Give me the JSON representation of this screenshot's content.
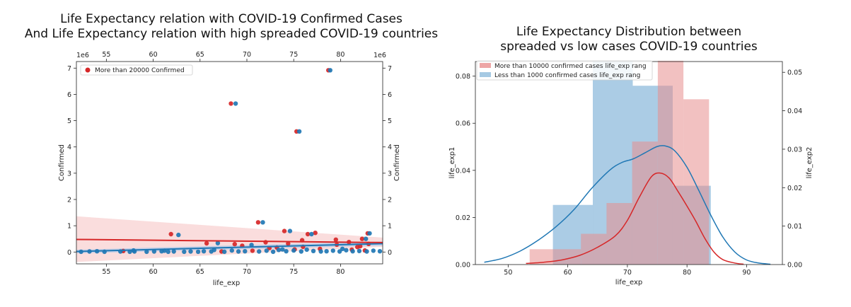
{
  "chart_data": [
    {
      "type": "scatter",
      "title_line1": "Life Expectancy relation with COVID-19 Confirmed Cases",
      "title_line2": "And Life Expectancy relation with high spreaded COVID-19 countries",
      "xlabel": "life_exp",
      "ylabel_left": "Confirmed",
      "ylabel_right": "Confirmed",
      "offset_left": "1e6",
      "offset_right": "1e6",
      "xlim": [
        51.8,
        84.5
      ],
      "ylim": [
        -0.45,
        7.25
      ],
      "x_ticks": [
        "55",
        "60",
        "65",
        "70",
        "75",
        "80"
      ],
      "x_tick_values": [
        55,
        60,
        65,
        70,
        75,
        80
      ],
      "top_x_ticks": [
        "55",
        "60",
        "65",
        "70",
        "75",
        "80"
      ],
      "top_x_tick_values": [
        55,
        60,
        65,
        70,
        75,
        80
      ],
      "y_ticks": [
        "0",
        "1",
        "2",
        "3",
        "4",
        "5",
        "6",
        "7"
      ],
      "y_tick_values": [
        0,
        1,
        2,
        3,
        4,
        5,
        6,
        7
      ],
      "legend": {
        "label": "More than 20000 Confirmed",
        "placement": "upper-left"
      },
      "colors": {
        "red": "#d62728",
        "blue": "#1f77b4",
        "red_band": "#f6c6c6",
        "blue_band": "#aec7e8"
      },
      "series": [
        {
          "color": "red",
          "points": [
            [
              61.9,
              0.68
            ],
            [
              68.3,
              5.65
            ],
            [
              71.2,
              1.13
            ],
            [
              74.0,
              0.8
            ],
            [
              75.3,
              4.59
            ],
            [
              76.5,
              0.68
            ],
            [
              77.3,
              0.73
            ],
            [
              78.7,
              6.92
            ],
            [
              79.5,
              0.47
            ],
            [
              82.3,
              0.5
            ],
            [
              82.9,
              0.71
            ],
            [
              68.7,
              0.3
            ],
            [
              72.0,
              0.37
            ],
            [
              74.4,
              0.32
            ],
            [
              75.9,
              0.45
            ],
            [
              80.9,
              0.38
            ],
            [
              81.8,
              0.19
            ],
            [
              69.5,
              0.24
            ],
            [
              72.4,
              0.15
            ],
            [
              76.0,
              0.2
            ],
            [
              79.6,
              0.28
            ],
            [
              82.1,
              0.22
            ],
            [
              83.0,
              0.31
            ],
            [
              56.8,
              0.04
            ],
            [
              65.7,
              0.33
            ],
            [
              73.2,
              0.17
            ],
            [
              77.8,
              0.12
            ],
            [
              81.2,
              0.09
            ],
            [
              82.6,
              0.06
            ],
            [
              75.1,
              0.1
            ],
            [
              70.6,
              0.05
            ],
            [
              67.3,
              0.02
            ]
          ]
        },
        {
          "color": "blue",
          "points": [
            [
              62.7,
              0.65
            ],
            [
              68.8,
              5.65
            ],
            [
              71.7,
              1.13
            ],
            [
              74.6,
              0.8
            ],
            [
              75.6,
              4.59
            ],
            [
              76.9,
              0.68
            ],
            [
              78.9,
              6.92
            ],
            [
              82.7,
              0.5
            ],
            [
              83.1,
              0.71
            ],
            [
              52.3,
              0.01
            ],
            [
              53.2,
              0.02
            ],
            [
              54.0,
              0.03
            ],
            [
              54.8,
              0.01
            ],
            [
              56.5,
              0.02
            ],
            [
              57.5,
              0.01
            ],
            [
              58.0,
              0.02
            ],
            [
              59.3,
              0.01
            ],
            [
              60.1,
              0.02
            ],
            [
              60.9,
              0.03
            ],
            [
              61.6,
              0.01
            ],
            [
              62.2,
              0.02
            ],
            [
              63.3,
              0.01
            ],
            [
              64.0,
              0.02
            ],
            [
              64.8,
              0.01
            ],
            [
              65.4,
              0.03
            ],
            [
              66.2,
              0.02
            ],
            [
              66.9,
              0.34
            ],
            [
              67.6,
              0.01
            ],
            [
              68.4,
              0.06
            ],
            [
              69.1,
              0.02
            ],
            [
              69.8,
              0.03
            ],
            [
              70.5,
              0.27
            ],
            [
              71.3,
              0.02
            ],
            [
              72.1,
              0.05
            ],
            [
              72.8,
              0.01
            ],
            [
              73.4,
              0.08
            ],
            [
              74.2,
              0.03
            ],
            [
              75.0,
              0.06
            ],
            [
              75.8,
              0.02
            ],
            [
              76.4,
              0.09
            ],
            [
              77.1,
              0.04
            ],
            [
              77.9,
              0.02
            ],
            [
              78.5,
              0.03
            ],
            [
              79.2,
              0.05
            ],
            [
              79.9,
              0.02
            ],
            [
              80.6,
              0.07
            ],
            [
              81.3,
              0.03
            ],
            [
              82.0,
              0.04
            ],
            [
              82.8,
              0.02
            ],
            [
              83.5,
              0.05
            ],
            [
              84.2,
              0.03
            ],
            [
              57.9,
              0.06
            ],
            [
              61.2,
              0.05
            ],
            [
              66.5,
              0.08
            ],
            [
              73.8,
              0.1
            ],
            [
              80.2,
              0.12
            ]
          ]
        }
      ],
      "regression": {
        "red": {
          "x": [
            51.8,
            84.5
          ],
          "y": [
            0.48,
            0.36
          ],
          "band_lower": [
            -0.38,
            0.2
          ],
          "band_upper": [
            1.36,
            0.55
          ]
        },
        "blue": {
          "x": [
            51.8,
            84.5
          ],
          "y": [
            0.02,
            0.32
          ],
          "band_lower": [
            -0.05,
            0.24
          ],
          "band_upper": [
            0.09,
            0.4
          ]
        }
      }
    },
    {
      "type": "histogram",
      "title_line1": "Life Expectancy Distribution between",
      "title_line2": "spreaded vs low cases COVID-19 countries",
      "xlabel": "life_exp",
      "ylabel_left": "life_exp1",
      "ylabel_right": "life_exp2",
      "xlim": [
        44.5,
        96
      ],
      "ylim_left": [
        0,
        0.0862
      ],
      "ylim_right": [
        0,
        0.0528
      ],
      "x_ticks": [
        "50",
        "60",
        "70",
        "80",
        "90"
      ],
      "x_tick_values": [
        50,
        60,
        70,
        80,
        90
      ],
      "y_left_ticks": [
        "0.00",
        "0.02",
        "0.04",
        "0.06",
        "0.08"
      ],
      "y_left_tick_values": [
        0,
        0.02,
        0.04,
        0.06,
        0.08
      ],
      "y_right_ticks": [
        "0.00",
        "0.01",
        "0.02",
        "0.03",
        "0.04",
        "0.05"
      ],
      "y_right_tick_values": [
        0,
        0.01,
        0.02,
        0.03,
        0.04,
        0.05
      ],
      "legend": [
        {
          "label": "More than 10000 confirmed cases life_exp rang",
          "color": "red"
        },
        {
          "label": "Less than 1000 confirmed cases life_exp rang",
          "color": "blue"
        }
      ],
      "colors": {
        "red": "#d62728",
        "blue": "#1f77b4",
        "red_fill": "#e88e8e",
        "blue_fill": "#8fbbdc"
      },
      "red_hist": {
        "bin_edges": [
          53.6,
          57.9,
          62.2,
          66.5,
          70.8,
          75.1,
          79.4,
          83.7
        ],
        "values": [
          0.004,
          0.004,
          0.008,
          0.016,
          0.032,
          0.053,
          0.043
        ],
        "axis": "right"
      },
      "blue_hist": {
        "bin_edges": [
          57.5,
          64.2,
          70.9,
          77.6,
          84.0
        ],
        "values": [
          0.0155,
          0.053,
          0.0465,
          0.0205
        ],
        "axis": "right"
      },
      "red_kde": {
        "x": [
          53,
          56,
          59,
          62,
          65,
          68,
          70,
          72,
          74,
          75.5,
          77,
          78.5,
          80,
          81.5,
          83,
          84.5,
          86,
          88,
          89.5
        ],
        "y": [
          0.0003,
          0.0006,
          0.0012,
          0.0024,
          0.0045,
          0.0075,
          0.0115,
          0.0175,
          0.0228,
          0.0238,
          0.0225,
          0.019,
          0.0152,
          0.0112,
          0.0068,
          0.0033,
          0.0013,
          0.0004,
          0.0001
        ],
        "axis": "right"
      },
      "blue_kde": {
        "x": [
          46,
          49,
          52,
          55,
          58,
          61,
          64,
          67,
          69,
          71,
          73,
          75,
          76.5,
          78,
          80,
          82,
          84,
          86,
          88,
          90,
          92,
          94
        ],
        "y": [
          0.0006,
          0.0016,
          0.0035,
          0.0063,
          0.0098,
          0.0142,
          0.0198,
          0.0245,
          0.0265,
          0.0275,
          0.0291,
          0.0307,
          0.0308,
          0.0295,
          0.0253,
          0.0192,
          0.0128,
          0.0072,
          0.0033,
          0.0012,
          0.0004,
          0.0001
        ],
        "axis": "right"
      }
    }
  ]
}
